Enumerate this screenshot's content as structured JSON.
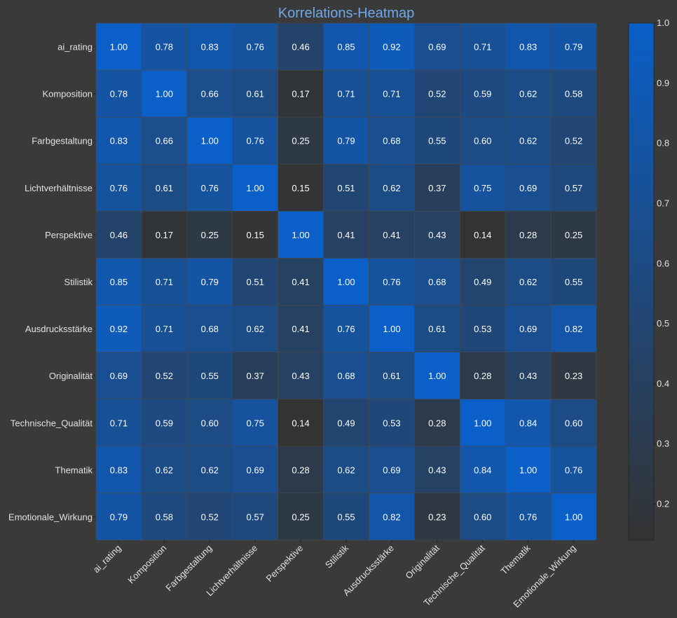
{
  "chart_data": {
    "type": "heatmap",
    "title": "Korrelations-Heatmap",
    "row_labels": [
      "ai_rating",
      "Komposition",
      "Farbgestaltung",
      "Lichtverhältnisse",
      "Perspektive",
      "Stilistik",
      "Ausdrucksstärke",
      "Originalität",
      "Technische_Qualität",
      "Thematik",
      "Emotionale_Wirkung"
    ],
    "column_labels": [
      "ai_rating",
      "Komposition",
      "Farbgestaltung",
      "Lichtverhältnisse",
      "Perspektive",
      "Stilistik",
      "Ausdrucksstärke",
      "Originalität",
      "Technische_Qualität",
      "Thematik",
      "Emotionale_Wirkung"
    ],
    "values": [
      [
        "1.00",
        "0.78",
        "0.83",
        "0.76",
        "0.46",
        "0.85",
        "0.92",
        "0.69",
        "0.71",
        "0.83",
        "0.79"
      ],
      [
        "0.78",
        "1.00",
        "0.66",
        "0.61",
        "0.17",
        "0.71",
        "0.71",
        "0.52",
        "0.59",
        "0.62",
        "0.58"
      ],
      [
        "0.83",
        "0.66",
        "1.00",
        "0.76",
        "0.25",
        "0.79",
        "0.68",
        "0.55",
        "0.60",
        "0.62",
        "0.52"
      ],
      [
        "0.76",
        "0.61",
        "0.76",
        "1.00",
        "0.15",
        "0.51",
        "0.62",
        "0.37",
        "0.75",
        "0.69",
        "0.57"
      ],
      [
        "0.46",
        "0.17",
        "0.25",
        "0.15",
        "1.00",
        "0.41",
        "0.41",
        "0.43",
        "0.14",
        "0.28",
        "0.25"
      ],
      [
        "0.85",
        "0.71",
        "0.79",
        "0.51",
        "0.41",
        "1.00",
        "0.76",
        "0.68",
        "0.49",
        "0.62",
        "0.55"
      ],
      [
        "0.92",
        "0.71",
        "0.68",
        "0.62",
        "0.41",
        "0.76",
        "1.00",
        "0.61",
        "0.53",
        "0.69",
        "0.82"
      ],
      [
        "0.69",
        "0.52",
        "0.55",
        "0.37",
        "0.43",
        "0.68",
        "0.61",
        "1.00",
        "0.28",
        "0.43",
        "0.23"
      ],
      [
        "0.71",
        "0.59",
        "0.60",
        "0.75",
        "0.14",
        "0.49",
        "0.53",
        "0.28",
        "1.00",
        "0.84",
        "0.60"
      ],
      [
        "0.83",
        "0.62",
        "0.62",
        "0.69",
        "0.28",
        "0.62",
        "0.69",
        "0.43",
        "0.84",
        "1.00",
        "0.76"
      ],
      [
        "0.79",
        "0.58",
        "0.52",
        "0.57",
        "0.25",
        "0.55",
        "0.82",
        "0.23",
        "0.60",
        "0.76",
        "1.00"
      ]
    ],
    "colorbar": {
      "min": 0.14,
      "max": 1.0,
      "ticks": [
        "0.2",
        "0.3",
        "0.4",
        "0.5",
        "0.6",
        "0.7",
        "0.8",
        "0.9",
        "1.0"
      ],
      "color_low": "#333333",
      "color_high": "#0a5fc8"
    },
    "colors": {
      "background": "#3a3a3a",
      "title": "#6ea8ea",
      "label_text": "#e2e2e2",
      "cell_text": "#ffffff",
      "grid_line": "#4a4a4a"
    }
  }
}
